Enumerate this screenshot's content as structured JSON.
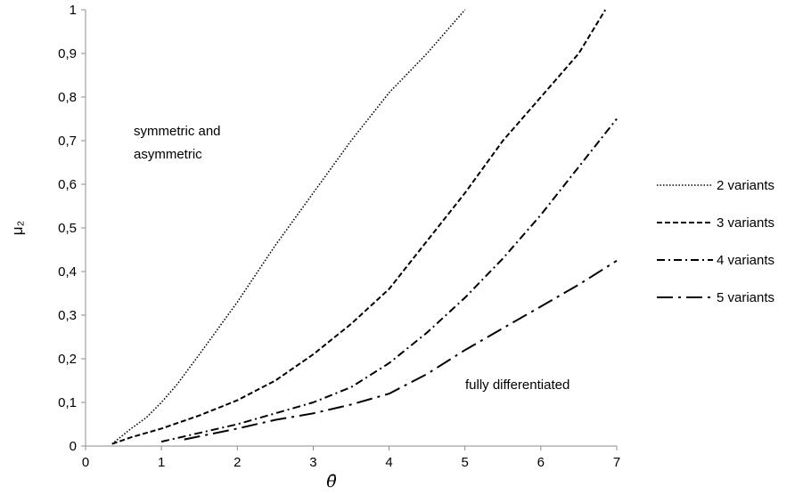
{
  "chart_data": {
    "type": "line",
    "title": "",
    "xlabel": "θ̄",
    "ylabel": "μ₂",
    "xlim": [
      0,
      7
    ],
    "ylim": [
      0,
      1
    ],
    "x_ticks": [
      "0",
      "1",
      "2",
      "3",
      "4",
      "5",
      "6",
      "7"
    ],
    "y_ticks": [
      "0",
      "0,1",
      "0,2",
      "0,3",
      "0,4",
      "0,5",
      "0,6",
      "0,7",
      "0,8",
      "0,9",
      "1"
    ],
    "grid": false,
    "legend_position": "right",
    "series": [
      {
        "name": "2 variants",
        "dash": "dotted",
        "points": [
          [
            0.35,
            0.005
          ],
          [
            0.6,
            0.04
          ],
          [
            0.8,
            0.065
          ],
          [
            1.0,
            0.1
          ],
          [
            1.2,
            0.14
          ],
          [
            1.5,
            0.21
          ],
          [
            2.0,
            0.33
          ],
          [
            2.5,
            0.46
          ],
          [
            3.0,
            0.58
          ],
          [
            3.5,
            0.7
          ],
          [
            4.0,
            0.81
          ],
          [
            4.5,
            0.9
          ],
          [
            5.0,
            1.0
          ]
        ]
      },
      {
        "name": "3 variants",
        "dash": "dashed",
        "points": [
          [
            0.35,
            0.005
          ],
          [
            0.6,
            0.02
          ],
          [
            1.0,
            0.04
          ],
          [
            1.5,
            0.07
          ],
          [
            2.0,
            0.105
          ],
          [
            2.5,
            0.15
          ],
          [
            3.0,
            0.21
          ],
          [
            3.5,
            0.28
          ],
          [
            4.0,
            0.36
          ],
          [
            4.5,
            0.47
          ],
          [
            5.0,
            0.58
          ],
          [
            5.5,
            0.7
          ],
          [
            6.0,
            0.8
          ],
          [
            6.5,
            0.9
          ],
          [
            6.85,
            1.0
          ]
        ]
      },
      {
        "name": "4 variants",
        "dash": "dash-dot",
        "points": [
          [
            1.0,
            0.01
          ],
          [
            1.5,
            0.03
          ],
          [
            2.0,
            0.05
          ],
          [
            2.5,
            0.075
          ],
          [
            3.0,
            0.1
          ],
          [
            3.5,
            0.135
          ],
          [
            4.0,
            0.19
          ],
          [
            4.5,
            0.26
          ],
          [
            5.0,
            0.34
          ],
          [
            5.5,
            0.43
          ],
          [
            6.0,
            0.53
          ],
          [
            6.5,
            0.64
          ],
          [
            7.0,
            0.75
          ]
        ]
      },
      {
        "name": "5 variants",
        "dash": "long-dash-dot",
        "points": [
          [
            1.3,
            0.015
          ],
          [
            2.0,
            0.04
          ],
          [
            2.5,
            0.06
          ],
          [
            3.0,
            0.075
          ],
          [
            3.5,
            0.095
          ],
          [
            4.0,
            0.12
          ],
          [
            4.5,
            0.165
          ],
          [
            5.0,
            0.22
          ],
          [
            5.5,
            0.27
          ],
          [
            6.0,
            0.32
          ],
          [
            6.5,
            0.37
          ],
          [
            7.0,
            0.425
          ]
        ]
      }
    ],
    "annotations": [
      {
        "id": "symmetric",
        "lines": [
          "symmetric and",
          "asymmetric"
        ]
      },
      {
        "id": "fully",
        "lines": [
          "fully differentiated"
        ]
      }
    ]
  }
}
